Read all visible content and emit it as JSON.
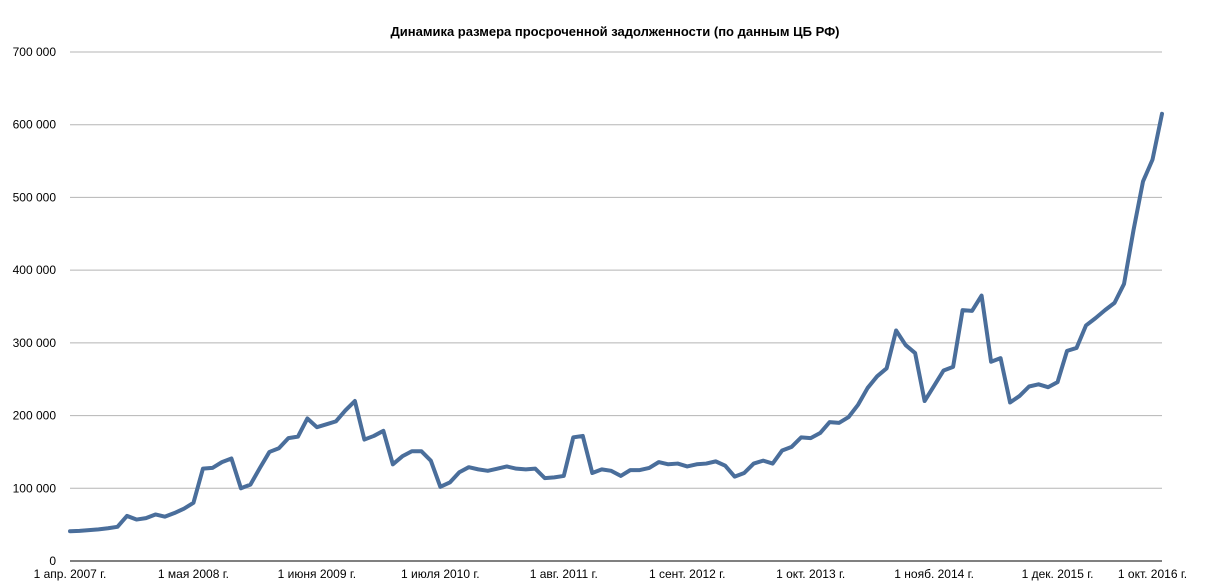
{
  "chart_data": {
    "type": "line",
    "title": "Динамика размера просроченной задолженности (по данным ЦБ РФ)",
    "xlabel": "",
    "ylabel": "",
    "ylim": [
      0,
      700000
    ],
    "grid": true,
    "legend": "none",
    "x_start": "2007-04",
    "x_end": "2016-10",
    "yticks": [
      0,
      100000,
      200000,
      300000,
      400000,
      500000,
      600000,
      700000
    ],
    "ytick_labels": [
      "0",
      "100 000",
      "200 000",
      "300 000",
      "400 000",
      "500 000",
      "600 000",
      "700 000"
    ],
    "xtick_labels": [
      {
        "date": "2007-04",
        "label": "1 апр. 2007 г."
      },
      {
        "date": "2008-05",
        "label": "1 мая 2008 г."
      },
      {
        "date": "2009-06",
        "label": "1 июня 2009 г."
      },
      {
        "date": "2010-07",
        "label": "1 июля 2010 г."
      },
      {
        "date": "2011-08",
        "label": "1 авг. 2011 г."
      },
      {
        "date": "2012-09",
        "label": "1 сент. 2012 г."
      },
      {
        "date": "2013-10",
        "label": "1 окт. 2013 г."
      },
      {
        "date": "2014-11",
        "label": "1 нояб. 2014 г."
      },
      {
        "date": "2015-12",
        "label": "1 дек. 2015 г."
      },
      {
        "date": "2016-10",
        "label": "1 окт. 2016 г."
      }
    ],
    "series": [
      {
        "color": "#4a6e9b",
        "points": [
          [
            "2007-04",
            41000
          ],
          [
            "2007-05",
            41500
          ],
          [
            "2007-06",
            42500
          ],
          [
            "2007-07",
            43500
          ],
          [
            "2007-08",
            45000
          ],
          [
            "2007-09",
            47000
          ],
          [
            "2007-10",
            62000
          ],
          [
            "2007-11",
            57000
          ],
          [
            "2007-12",
            59000
          ],
          [
            "2008-01",
            64000
          ],
          [
            "2008-02",
            61000
          ],
          [
            "2008-03",
            66000
          ],
          [
            "2008-04",
            72000
          ],
          [
            "2008-05",
            80000
          ],
          [
            "2008-06",
            127000
          ],
          [
            "2008-07",
            128000
          ],
          [
            "2008-08",
            136000
          ],
          [
            "2008-09",
            141000
          ],
          [
            "2008-10",
            100000
          ],
          [
            "2008-11",
            105000
          ],
          [
            "2008-12",
            128000
          ],
          [
            "2009-01",
            150000
          ],
          [
            "2009-02",
            155000
          ],
          [
            "2009-03",
            169000
          ],
          [
            "2009-04",
            171000
          ],
          [
            "2009-05",
            196000
          ],
          [
            "2009-06",
            184000
          ],
          [
            "2009-07",
            188000
          ],
          [
            "2009-08",
            192000
          ],
          [
            "2009-09",
            207000
          ],
          [
            "2009-10",
            220000
          ],
          [
            "2009-11",
            167000
          ],
          [
            "2009-12",
            172000
          ],
          [
            "2010-01",
            179000
          ],
          [
            "2010-02",
            133000
          ],
          [
            "2010-03",
            144000
          ],
          [
            "2010-04",
            151000
          ],
          [
            "2010-05",
            151000
          ],
          [
            "2010-06",
            138000
          ],
          [
            "2010-07",
            102000
          ],
          [
            "2010-08",
            108000
          ],
          [
            "2010-09",
            122000
          ],
          [
            "2010-10",
            129000
          ],
          [
            "2010-11",
            126000
          ],
          [
            "2010-12",
            124000
          ],
          [
            "2011-01",
            127000
          ],
          [
            "2011-02",
            130000
          ],
          [
            "2011-03",
            127000
          ],
          [
            "2011-04",
            126000
          ],
          [
            "2011-05",
            127000
          ],
          [
            "2011-06",
            114000
          ],
          [
            "2011-07",
            115000
          ],
          [
            "2011-08",
            117000
          ],
          [
            "2011-09",
            170000
          ],
          [
            "2011-10",
            172000
          ],
          [
            "2011-11",
            121000
          ],
          [
            "2011-12",
            126000
          ],
          [
            "2012-01",
            124000
          ],
          [
            "2012-02",
            117000
          ],
          [
            "2012-03",
            125000
          ],
          [
            "2012-04",
            125000
          ],
          [
            "2012-05",
            128000
          ],
          [
            "2012-06",
            136000
          ],
          [
            "2012-07",
            133000
          ],
          [
            "2012-08",
            134000
          ],
          [
            "2012-09",
            130000
          ],
          [
            "2012-10",
            133000
          ],
          [
            "2012-11",
            134000
          ],
          [
            "2012-12",
            137000
          ],
          [
            "2013-01",
            131000
          ],
          [
            "2013-02",
            116000
          ],
          [
            "2013-03",
            121000
          ],
          [
            "2013-04",
            134000
          ],
          [
            "2013-05",
            138000
          ],
          [
            "2013-06",
            134000
          ],
          [
            "2013-07",
            152000
          ],
          [
            "2013-08",
            157000
          ],
          [
            "2013-09",
            170000
          ],
          [
            "2013-10",
            169000
          ],
          [
            "2013-11",
            176000
          ],
          [
            "2013-12",
            191000
          ],
          [
            "2014-01",
            190000
          ],
          [
            "2014-02",
            198000
          ],
          [
            "2014-03",
            215000
          ],
          [
            "2014-04",
            238000
          ],
          [
            "2014-05",
            254000
          ],
          [
            "2014-06",
            265000
          ],
          [
            "2014-07",
            317000
          ],
          [
            "2014-08",
            297000
          ],
          [
            "2014-09",
            286000
          ],
          [
            "2014-10",
            220000
          ],
          [
            "2014-11",
            241000
          ],
          [
            "2014-12",
            262000
          ],
          [
            "2015-01",
            267000
          ],
          [
            "2015-02",
            345000
          ],
          [
            "2015-03",
            344000
          ],
          [
            "2015-04",
            365000
          ],
          [
            "2015-05",
            274000
          ],
          [
            "2015-06",
            279000
          ],
          [
            "2015-07",
            218000
          ],
          [
            "2015-08",
            227000
          ],
          [
            "2015-09",
            240000
          ],
          [
            "2015-10",
            243000
          ],
          [
            "2015-11",
            239000
          ],
          [
            "2015-12",
            246000
          ],
          [
            "2016-01",
            289000
          ],
          [
            "2016-02",
            293000
          ],
          [
            "2016-03",
            324000
          ],
          [
            "2016-04",
            334000
          ],
          [
            "2016-05",
            345000
          ],
          [
            "2016-06",
            355000
          ],
          [
            "2016-07",
            381000
          ],
          [
            "2016-08",
            455000
          ],
          [
            "2016-09",
            522000
          ],
          [
            "2016-10",
            552000
          ],
          [
            "2016-11",
            615000
          ]
        ]
      }
    ]
  }
}
